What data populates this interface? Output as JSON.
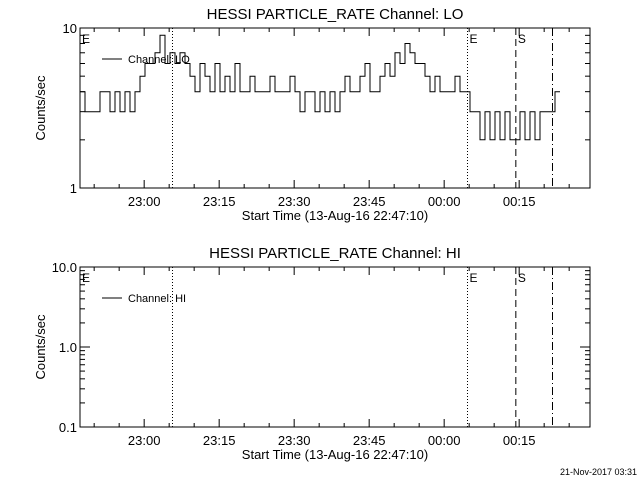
{
  "footer": {
    "timestamp": "21-Nov-2017 03:31"
  },
  "chart_data": [
    {
      "type": "line",
      "title": "HESSI PARTICLE_RATE Channel: LO",
      "xlabel": "Start Time (13-Aug-16 22:47:10)",
      "ylabel": "Counts/sec",
      "yscale": "log",
      "ylim": [
        1,
        10
      ],
      "ytick_labels": [
        "1",
        "10"
      ],
      "ytick_values": [
        1,
        10
      ],
      "xlim": [
        "22:47:10",
        "00:29:10"
      ],
      "xtick_labels": [
        "23:00",
        "23:15",
        "23:30",
        "23:45",
        "00:00",
        "00:15"
      ],
      "xtick_values": [
        "23:00",
        "23:15",
        "23:30",
        "23:45",
        "00:00",
        "00:15"
      ],
      "legend": {
        "entries": [
          "Channel: LO"
        ],
        "placement": "top-left"
      },
      "markers": [
        {
          "time": "22:47:10",
          "label": "E",
          "style": "none"
        },
        {
          "time": "23:05:40",
          "label": "",
          "style": "dotted"
        },
        {
          "time": "00:04:40",
          "label": "E",
          "style": "dotted"
        },
        {
          "time": "00:14:20",
          "label": "S",
          "style": "dashed"
        },
        {
          "time": "00:21:40",
          "label": "",
          "style": "dashdot"
        }
      ],
      "series": [
        {
          "name": "Channel: LO",
          "points": [
            [
              "22:47:10",
              4
            ],
            [
              "22:48:10",
              3
            ],
            [
              "22:49:10",
              3
            ],
            [
              "22:50:10",
              3
            ],
            [
              "22:51:10",
              4
            ],
            [
              "22:52:10",
              4
            ],
            [
              "22:53:10",
              3
            ],
            [
              "22:54:10",
              4
            ],
            [
              "22:55:10",
              3
            ],
            [
              "22:56:10",
              4
            ],
            [
              "22:57:10",
              3
            ],
            [
              "22:58:10",
              4
            ],
            [
              "22:59:10",
              5
            ],
            [
              "23:00:10",
              6
            ],
            [
              "23:01:10",
              6
            ],
            [
              "23:02:10",
              7
            ],
            [
              "23:03:10",
              9
            ],
            [
              "23:04:10",
              6
            ],
            [
              "23:05:10",
              7
            ],
            [
              "23:06:10",
              6
            ],
            [
              "23:07:10",
              7
            ],
            [
              "23:08:10",
              6
            ],
            [
              "23:09:10",
              5
            ],
            [
              "23:10:10",
              4
            ],
            [
              "23:11:10",
              6
            ],
            [
              "23:12:10",
              5
            ],
            [
              "23:13:10",
              4
            ],
            [
              "23:14:10",
              6
            ],
            [
              "23:15:10",
              4
            ],
            [
              "23:16:10",
              5
            ],
            [
              "23:17:10",
              4
            ],
            [
              "23:18:10",
              6
            ],
            [
              "23:19:10",
              4
            ],
            [
              "23:20:10",
              4
            ],
            [
              "23:21:10",
              5
            ],
            [
              "23:22:10",
              4
            ],
            [
              "23:23:10",
              4
            ],
            [
              "23:24:10",
              4
            ],
            [
              "23:25:10",
              5
            ],
            [
              "23:26:10",
              4
            ],
            [
              "23:27:10",
              4
            ],
            [
              "23:28:10",
              4
            ],
            [
              "23:29:10",
              5
            ],
            [
              "23:30:10",
              4
            ],
            [
              "23:31:10",
              3
            ],
            [
              "23:32:10",
              4
            ],
            [
              "23:33:10",
              4
            ],
            [
              "23:34:10",
              3
            ],
            [
              "23:35:10",
              4
            ],
            [
              "23:36:10",
              3
            ],
            [
              "23:37:10",
              4
            ],
            [
              "23:38:10",
              3
            ],
            [
              "23:39:10",
              4
            ],
            [
              "23:40:10",
              5
            ],
            [
              "23:41:10",
              4
            ],
            [
              "23:42:10",
              4
            ],
            [
              "23:43:10",
              5
            ],
            [
              "23:44:10",
              6
            ],
            [
              "23:45:10",
              4
            ],
            [
              "23:46:10",
              4
            ],
            [
              "23:47:10",
              5
            ],
            [
              "23:48:10",
              6
            ],
            [
              "23:49:10",
              5
            ],
            [
              "23:50:10",
              7
            ],
            [
              "23:51:10",
              6
            ],
            [
              "23:52:10",
              8
            ],
            [
              "23:53:10",
              7
            ],
            [
              "23:54:10",
              6
            ],
            [
              "23:55:10",
              6
            ],
            [
              "23:56:10",
              5
            ],
            [
              "23:57:10",
              4
            ],
            [
              "23:58:10",
              5
            ],
            [
              "23:59:10",
              4
            ],
            [
              "00:00:10",
              4
            ],
            [
              "00:01:10",
              4
            ],
            [
              "00:02:10",
              5
            ],
            [
              "00:03:10",
              4
            ],
            [
              "00:04:10",
              4
            ],
            [
              "00:05:10",
              3
            ],
            [
              "00:06:10",
              3
            ],
            [
              "00:07:10",
              2
            ],
            [
              "00:08:10",
              3
            ],
            [
              "00:09:10",
              2
            ],
            [
              "00:10:10",
              3
            ],
            [
              "00:11:10",
              2
            ],
            [
              "00:12:10",
              3
            ],
            [
              "00:13:10",
              2
            ],
            [
              "00:14:10",
              2
            ],
            [
              "00:15:10",
              3
            ],
            [
              "00:16:10",
              2
            ],
            [
              "00:17:10",
              3
            ],
            [
              "00:18:10",
              2
            ],
            [
              "00:19:10",
              3
            ],
            [
              "00:20:10",
              3
            ],
            [
              "00:21:10",
              3
            ],
            [
              "00:22:10",
              4
            ]
          ]
        }
      ]
    },
    {
      "type": "line",
      "title": "HESSI PARTICLE_RATE Channel: HI",
      "xlabel": "Start Time (13-Aug-16 22:47:10)",
      "ylabel": "Counts/sec",
      "yscale": "log",
      "ylim": [
        0.1,
        10
      ],
      "ytick_labels": [
        "0.1",
        "1.0",
        "10.0"
      ],
      "ytick_values": [
        0.1,
        1,
        10
      ],
      "xlim": [
        "22:47:10",
        "00:29:10"
      ],
      "xtick_labels": [
        "23:00",
        "23:15",
        "23:30",
        "23:45",
        "00:00",
        "00:15"
      ],
      "xtick_values": [
        "23:00",
        "23:15",
        "23:30",
        "23:45",
        "00:00",
        "00:15"
      ],
      "legend": {
        "entries": [
          "Channel: HI"
        ],
        "placement": "top-left"
      },
      "markers": [
        {
          "time": "22:47:10",
          "label": "E",
          "style": "none"
        },
        {
          "time": "23:05:40",
          "label": "",
          "style": "dotted"
        },
        {
          "time": "00:04:40",
          "label": "E",
          "style": "dotted"
        },
        {
          "time": "00:14:20",
          "label": "S",
          "style": "dashed"
        },
        {
          "time": "00:21:40",
          "label": "",
          "style": "dashdot"
        }
      ],
      "series": [
        {
          "name": "Channel: HI",
          "points": []
        }
      ]
    }
  ]
}
